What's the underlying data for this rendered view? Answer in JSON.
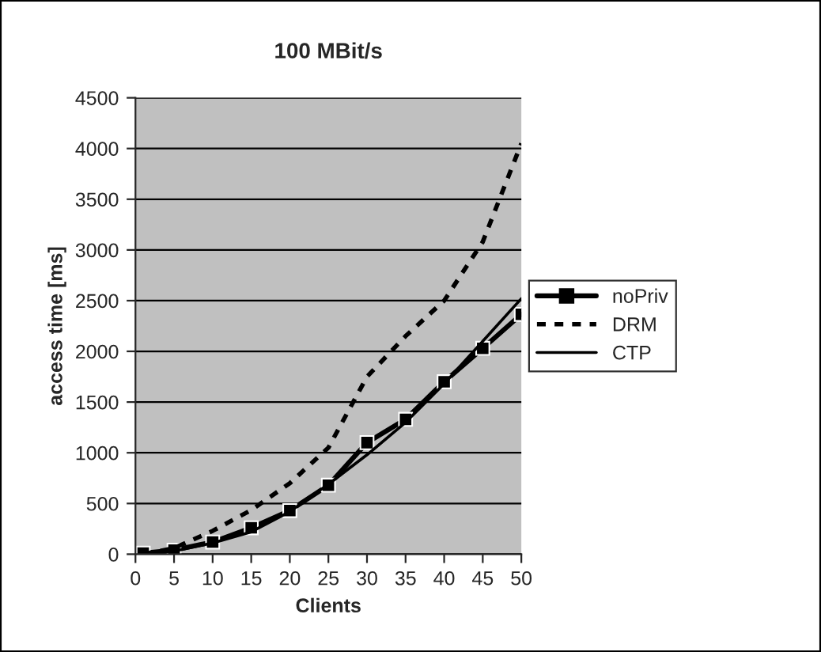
{
  "chart_data": {
    "type": "line",
    "title": "100 MBit/s",
    "xlabel": "Clients",
    "ylabel": "access time [ms]",
    "x": [
      1,
      5,
      10,
      15,
      20,
      25,
      30,
      35,
      40,
      45,
      50
    ],
    "series": [
      {
        "name": "noPriv",
        "color": "#000000",
        "marker": "square",
        "line_style": "solid",
        "values": [
          10,
          40,
          120,
          260,
          430,
          680,
          1100,
          1330,
          1700,
          2030,
          2365
        ]
      },
      {
        "name": "DRM",
        "color": "#000000",
        "marker": "none",
        "line_style": "dotted",
        "values": [
          0,
          60,
          230,
          435,
          700,
          1050,
          1750,
          2150,
          2500,
          3080,
          4050
        ]
      },
      {
        "name": "CTP",
        "color": "#000000",
        "marker": "none",
        "line_style": "solid",
        "values": [
          0,
          30,
          110,
          220,
          420,
          690,
          980,
          1300,
          1680,
          2100,
          2520
        ]
      }
    ],
    "xlim": [
      0,
      50
    ],
    "xticks": [
      0,
      5,
      10,
      15,
      20,
      25,
      30,
      35,
      40,
      45,
      50
    ],
    "ylim": [
      0,
      4500
    ],
    "yticks": [
      0,
      500,
      1000,
      1500,
      2000,
      2500,
      3000,
      3500,
      4000,
      4500
    ],
    "grid": "y",
    "legend": "right"
  }
}
